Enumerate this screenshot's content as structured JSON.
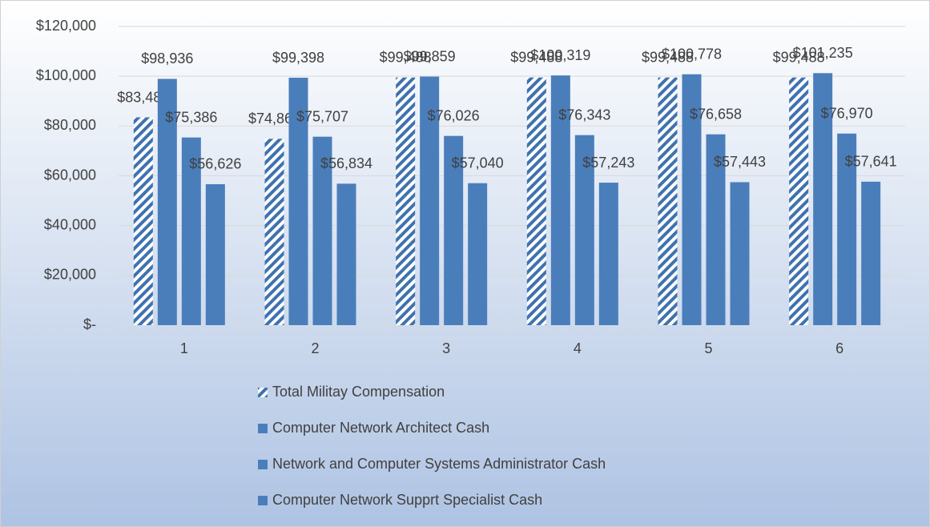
{
  "chart_data": {
    "type": "bar",
    "categories": [
      "1",
      "2",
      "3",
      "4",
      "5",
      "6"
    ],
    "series": [
      {
        "name": "Total Militay Compensation",
        "color": "#3f72af",
        "hatch": true,
        "values": [
          83484,
          74865,
          99488,
          99488,
          99488,
          99488
        ],
        "value_labels": [
          "$83,484",
          "$74,865",
          "$99,488",
          "$99,488",
          "$99,488",
          "$99,488"
        ]
      },
      {
        "name": "Computer Network Architect Cash",
        "color": "#4a7ebb",
        "values": [
          98936,
          99398,
          99859,
          100319,
          100778,
          101235
        ],
        "value_labels": [
          "$98,936",
          "$99,398",
          "$99,859",
          "$100,319",
          "$100,778",
          "$101,235"
        ]
      },
      {
        "name": "Network and Computer Systems Administrator Cash",
        "color": "#4a7ebb",
        "values": [
          75386,
          75707,
          76026,
          76343,
          76658,
          76970
        ],
        "value_labels": [
          "$75,386",
          "$75,707",
          "$76,026",
          "$76,343",
          "$76,658",
          "$76,970"
        ]
      },
      {
        "name": "Computer Network Supprt Specialist Cash",
        "color": "#4a7ebb",
        "values": [
          56626,
          56834,
          57040,
          57243,
          57443,
          57641
        ],
        "value_labels": [
          "$56,626",
          "$56,834",
          "$57,040",
          "$57,243",
          "$57,443",
          "$57,641"
        ]
      }
    ],
    "ylim": [
      0,
      120000
    ],
    "yticks": [
      {
        "value": 0,
        "label": "$-"
      },
      {
        "value": 20000,
        "label": "$20,000"
      },
      {
        "value": 40000,
        "label": "$40,000"
      },
      {
        "value": 60000,
        "label": "$60,000"
      },
      {
        "value": 80000,
        "label": "$80,000"
      },
      {
        "value": 100000,
        "label": "$100,000"
      },
      {
        "value": 120000,
        "label": "$120,000"
      }
    ],
    "grid": true
  }
}
